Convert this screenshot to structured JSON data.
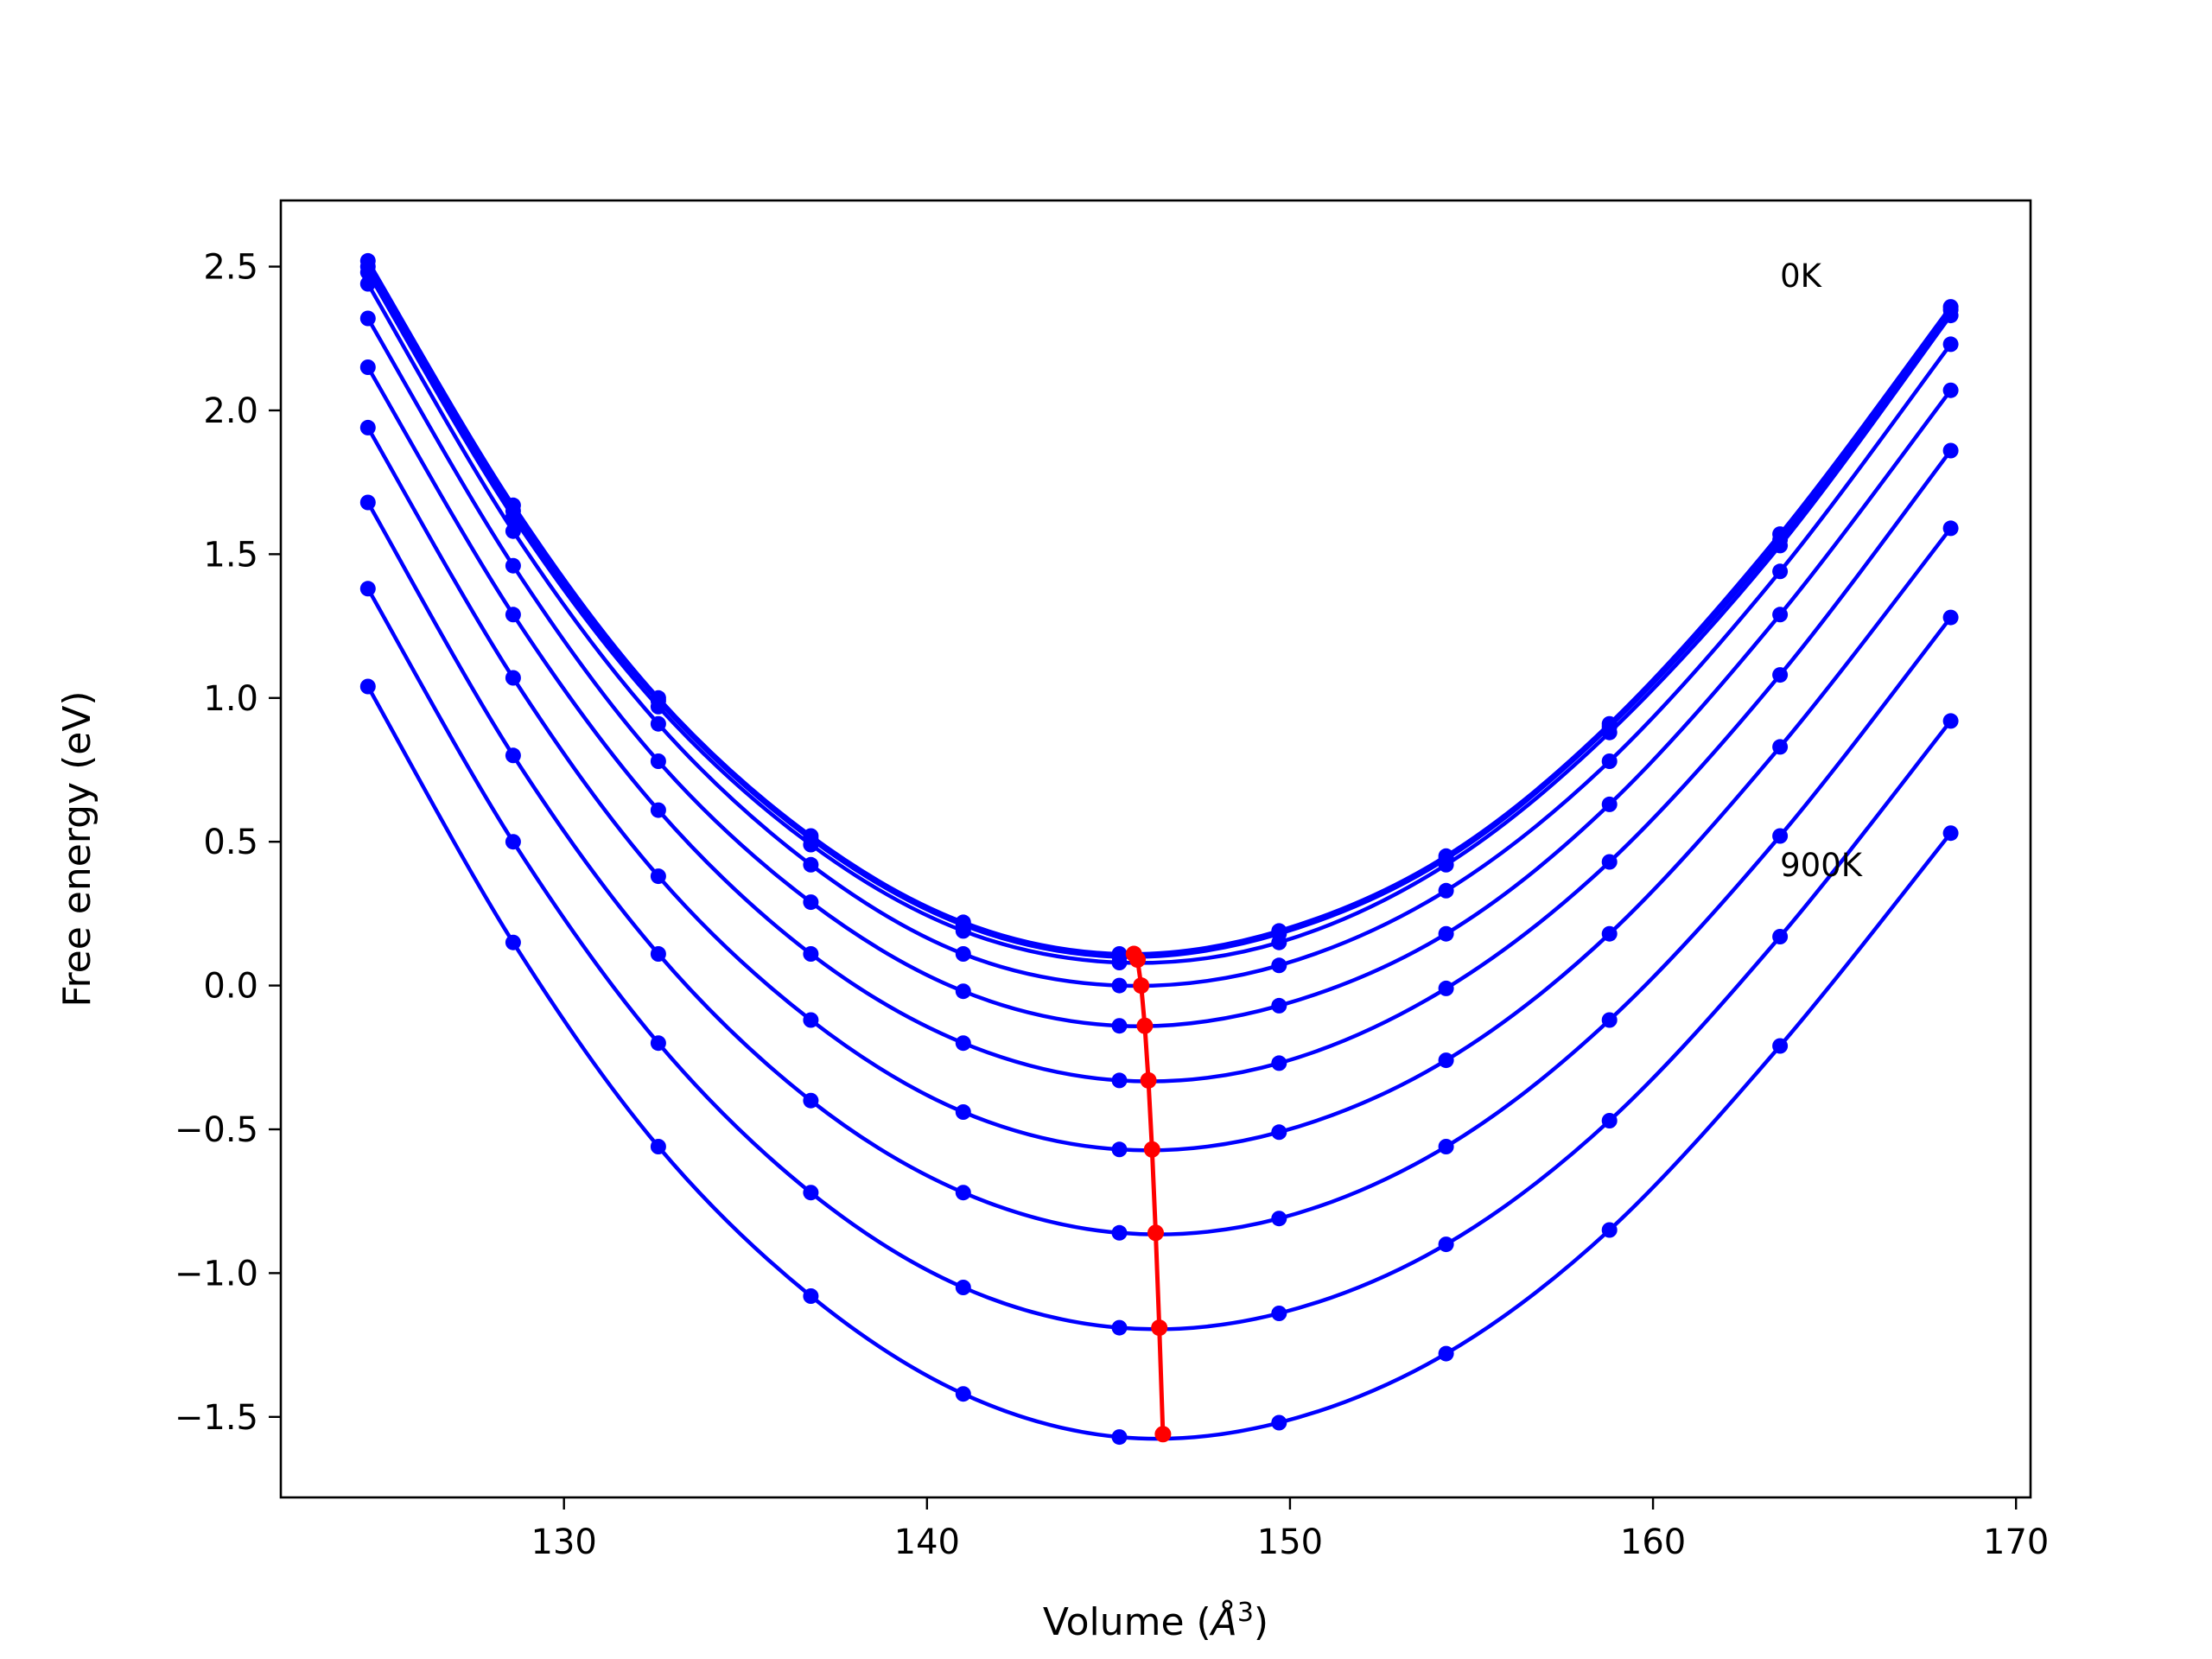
{
  "chart_data": {
    "type": "line",
    "xlabel_text": "Volume (",
    "xlabel_unit_base": "Å",
    "xlabel_unit_exp": "3",
    "xlabel_close": ")",
    "ylabel": "Free energy (eV)",
    "xlim": [
      122.2,
      170.4
    ],
    "ylim": [
      -1.78,
      2.73
    ],
    "xticks": [
      130,
      140,
      150,
      160,
      170
    ],
    "yticks": [
      -1.5,
      -1.0,
      -0.5,
      0.0,
      0.5,
      1.0,
      1.5,
      2.0,
      2.5
    ],
    "ytick_labels": [
      "−1.5",
      "−1.0",
      "−0.5",
      "0.0",
      "0.5",
      "1.0",
      "1.5",
      "2.0",
      "2.5"
    ],
    "annotations": [
      {
        "text": "0K",
        "x": 163.5,
        "y": 2.43
      },
      {
        "text": "900K",
        "x": 163.5,
        "y": 0.38
      }
    ],
    "x": [
      124.6,
      128.6,
      132.6,
      136.8,
      141.0,
      145.3,
      149.7,
      154.3,
      158.8,
      163.5,
      168.2
    ],
    "series": [
      {
        "values": [
          2.52,
          1.67,
          1.0,
          0.52,
          0.22,
          0.11,
          0.19,
          0.45,
          0.91,
          1.57,
          2.36
        ]
      },
      {
        "values": [
          2.5,
          1.65,
          0.99,
          0.51,
          0.21,
          0.1,
          0.18,
          0.44,
          0.9,
          1.55,
          2.35
        ]
      },
      {
        "values": [
          2.48,
          1.63,
          0.97,
          0.49,
          0.19,
          0.08,
          0.15,
          0.42,
          0.88,
          1.53,
          2.33
        ]
      },
      {
        "values": [
          2.44,
          1.58,
          0.91,
          0.42,
          0.11,
          -0.0,
          0.07,
          0.33,
          0.78,
          1.44,
          2.23
        ]
      },
      {
        "values": [
          2.32,
          1.46,
          0.78,
          0.29,
          -0.02,
          -0.14,
          -0.07,
          0.18,
          0.63,
          1.29,
          2.07
        ]
      },
      {
        "values": [
          2.15,
          1.29,
          0.61,
          0.11,
          -0.2,
          -0.33,
          -0.27,
          -0.01,
          0.43,
          1.08,
          1.86
        ]
      },
      {
        "values": [
          1.94,
          1.07,
          0.38,
          -0.12,
          -0.44,
          -0.57,
          -0.51,
          -0.26,
          0.18,
          0.83,
          1.59
        ]
      },
      {
        "values": [
          1.68,
          0.8,
          0.11,
          -0.4,
          -0.72,
          -0.86,
          -0.81,
          -0.56,
          -0.12,
          0.52,
          1.28
        ]
      },
      {
        "values": [
          1.38,
          0.5,
          -0.2,
          -0.72,
          -1.05,
          -1.19,
          -1.14,
          -0.9,
          -0.47,
          0.17,
          0.92
        ]
      },
      {
        "values": [
          1.04,
          0.15,
          -0.56,
          -1.08,
          -1.42,
          -1.57,
          -1.52,
          -1.28,
          -0.85,
          -0.21,
          0.53
        ]
      }
    ],
    "minimum_line": {
      "x": [
        145.7,
        145.8,
        145.9,
        146.0,
        146.1,
        146.2,
        146.3,
        146.4,
        146.5
      ],
      "y": [
        0.11,
        0.09,
        0.0,
        -0.14,
        -0.33,
        -0.57,
        -0.86,
        -1.19,
        -1.56
      ]
    },
    "colors": {
      "curves": "#0000ff",
      "minimum_line": "#ff0000",
      "frame": "#000000"
    }
  }
}
